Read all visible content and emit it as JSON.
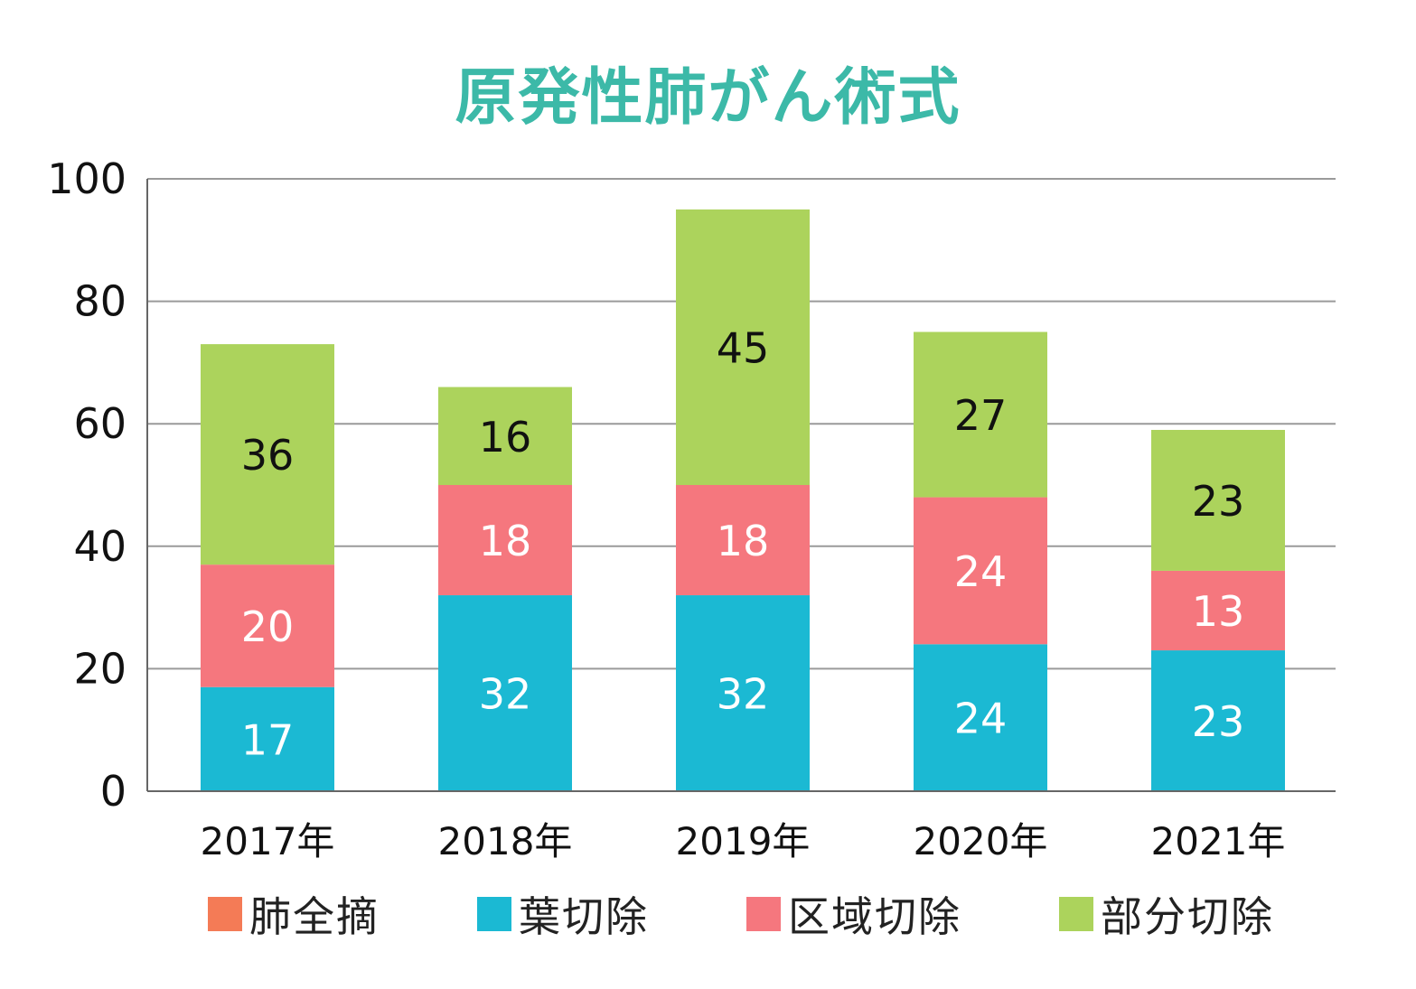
{
  "chart_data": {
    "type": "bar",
    "stacked": true,
    "title": "原発性肺がん術式",
    "categories": [
      "2017年",
      "2018年",
      "2019年",
      "2020年",
      "2021年"
    ],
    "series": [
      {
        "name": "肺全摘",
        "color": "#f47b56",
        "values": [
          0,
          0,
          0,
          0,
          0
        ]
      },
      {
        "name": "葉切除",
        "color": "#1bb9d3",
        "values": [
          17,
          32,
          32,
          24,
          23
        ]
      },
      {
        "name": "区域切除",
        "color": "#f5777e",
        "values": [
          20,
          18,
          18,
          24,
          13
        ]
      },
      {
        "name": "部分切除",
        "color": "#acd35c",
        "values": [
          36,
          16,
          45,
          27,
          23
        ]
      }
    ],
    "ylim": [
      0,
      100
    ],
    "yticks": [
      0,
      20,
      40,
      60,
      80,
      100
    ],
    "grid": true,
    "legend": "bottom",
    "label_colors": {
      "葉切除": "#ffffff",
      "区域切除": "#ffffff",
      "部分切除": "#111111"
    },
    "title_color": "#3cb9a8"
  }
}
